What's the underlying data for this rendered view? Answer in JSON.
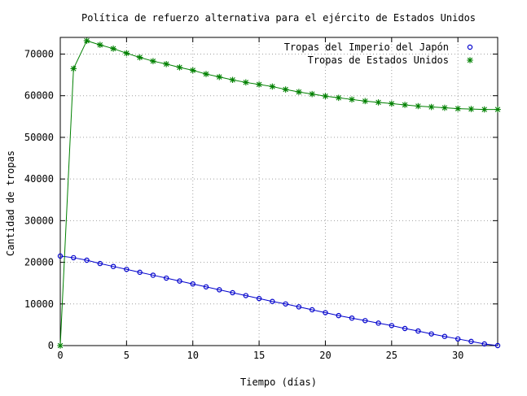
{
  "chart_data": {
    "type": "line",
    "title": "Política de refuerzo alternativa para el ejército de Estados Unidos",
    "xlabel": "Tiempo (días)",
    "ylabel": "Cantidad de tropas",
    "xlim": [
      0,
      33
    ],
    "ylim": [
      0,
      74000
    ],
    "xticks": [
      0,
      5,
      10,
      15,
      20,
      25,
      30
    ],
    "yticks": [
      0,
      10000,
      20000,
      30000,
      40000,
      50000,
      60000,
      70000
    ],
    "grid": true,
    "legend_position": "top-right",
    "x": [
      0,
      1,
      2,
      3,
      4,
      5,
      6,
      7,
      8,
      9,
      10,
      11,
      12,
      13,
      14,
      15,
      16,
      17,
      18,
      19,
      20,
      21,
      22,
      23,
      24,
      25,
      26,
      27,
      28,
      29,
      30,
      31,
      32,
      33
    ],
    "series": [
      {
        "name": "Tropas del Imperio del Japón",
        "color": "#0000cc",
        "marker": "circle",
        "values": [
          21500,
          21100,
          20500,
          19700,
          19000,
          18300,
          17600,
          16900,
          16200,
          15500,
          14800,
          14100,
          13400,
          12700,
          12000,
          11300,
          10600,
          10000,
          9300,
          8600,
          7900,
          7200,
          6600,
          6000,
          5400,
          4800,
          4100,
          3500,
          2800,
          2200,
          1600,
          1000,
          400,
          0
        ]
      },
      {
        "name": "Tropas de Estados Unidos",
        "color": "#008000",
        "marker": "star",
        "values": [
          0,
          66500,
          73200,
          72200,
          71300,
          70200,
          69200,
          68300,
          67600,
          66800,
          66100,
          65200,
          64500,
          63800,
          63200,
          62700,
          62200,
          61500,
          60900,
          60400,
          59900,
          59500,
          59100,
          58700,
          58400,
          58100,
          57800,
          57500,
          57300,
          57100,
          56900,
          56800,
          56700,
          56700
        ]
      }
    ]
  }
}
